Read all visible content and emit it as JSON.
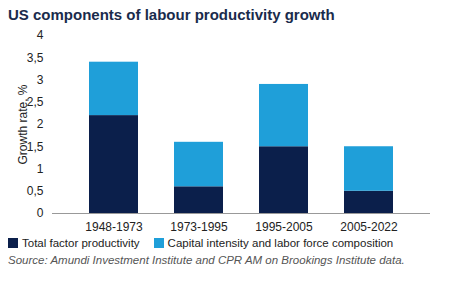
{
  "chart_data": {
    "type": "bar",
    "stacked": true,
    "title": "US components of labour productivity growth",
    "y_label": "Growth rate, %",
    "caption": "Source: Amundi Investment Institute and CPR AM on Brookings Institute data.",
    "categories": [
      "1948-1973",
      "1973-1995",
      "1995-2005",
      "2005-2022"
    ],
    "series": [
      {
        "name": "Total factor productivity",
        "color": "#0b1f4b",
        "values": [
          2.2,
          0.6,
          1.5,
          0.5
        ]
      },
      {
        "name": "Capital intensity and labor force composition",
        "color": "#1f9fd9",
        "values": [
          1.2,
          1.0,
          1.4,
          1.0
        ]
      }
    ],
    "ylim": [
      0,
      4
    ],
    "yticks": [
      0,
      {
        "value": 0.5,
        "label": "0,5"
      },
      1,
      {
        "value": 1.5,
        "label": "1,5"
      },
      2,
      {
        "value": 2.5,
        "label": "2,5"
      },
      3,
      {
        "value": 3.5,
        "label": "3,5"
      },
      4
    ],
    "grid": false,
    "legend": "bottom"
  }
}
